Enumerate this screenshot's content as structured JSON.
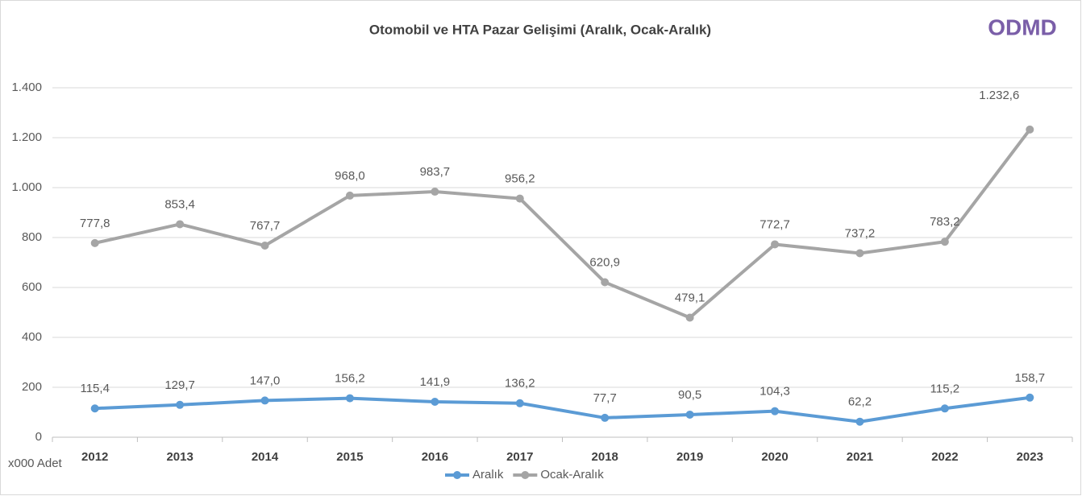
{
  "chart_data": {
    "type": "line",
    "title": "Otomobil ve HTA Pazar Gelişimi (Aralık, Ocak-Aralık)",
    "logo": "ODMD",
    "y_unit_label": "x000 Adet",
    "categories": [
      "2012",
      "2013",
      "2014",
      "2015",
      "2016",
      "2017",
      "2018",
      "2019",
      "2020",
      "2021",
      "2022",
      "2023"
    ],
    "series": [
      {
        "name": "Aralık",
        "color": "#5b9bd5",
        "values": [
          115.4,
          129.7,
          147.0,
          156.2,
          141.9,
          136.2,
          77.7,
          90.5,
          104.3,
          62.2,
          115.2,
          158.7
        ],
        "value_labels": [
          "115,4",
          "129,7",
          "147,0",
          "156,2",
          "141,9",
          "136,2",
          "77,7",
          "90,5",
          "104,3",
          "62,2",
          "115,2",
          "158,7"
        ]
      },
      {
        "name": "Ocak-Aralık",
        "color": "#a5a5a5",
        "values": [
          777.8,
          853.4,
          767.7,
          968.0,
          983.7,
          956.2,
          620.9,
          479.1,
          772.7,
          737.2,
          783.2,
          1232.6
        ],
        "value_labels": [
          "777,8",
          "853,4",
          "767,7",
          "968,0",
          "983,7",
          "956,2",
          "620,9",
          "479,1",
          "772,7",
          "737,2",
          "783,2",
          "1.232,6"
        ]
      }
    ],
    "ylim": [
      0,
      1400
    ],
    "yticks": [
      0,
      200,
      400,
      600,
      800,
      {
        "value": 1000,
        "label": "1.000"
      },
      {
        "value": 1200,
        "label": "1.200"
      },
      {
        "value": 1400,
        "label": "1.400"
      }
    ],
    "grid": true,
    "legend": "bottom"
  }
}
